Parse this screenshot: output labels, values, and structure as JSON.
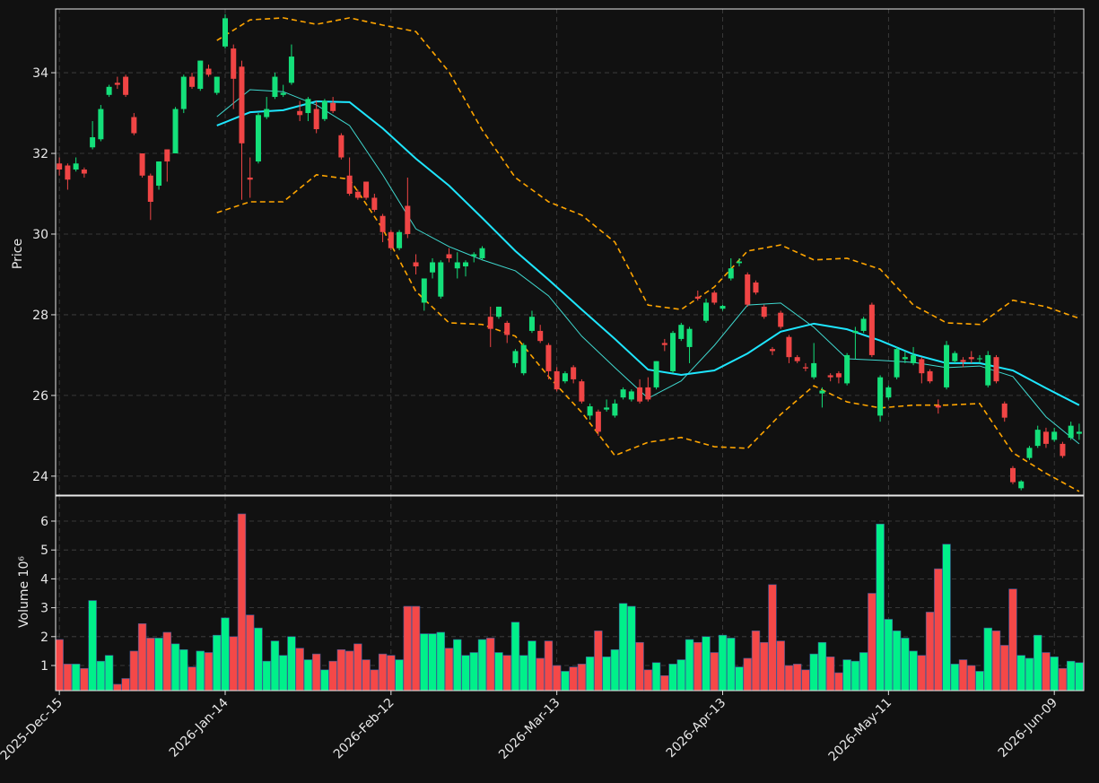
{
  "chart_data": [
    {
      "type": "candlestick",
      "ylabel": "Price",
      "xlim": [
        -0.45,
        123.55
      ],
      "ylim": [
        23.53,
        35.58
      ],
      "yticks": [
        24,
        26,
        28,
        30,
        32,
        34
      ],
      "grid": true,
      "up_color": "#14e07a",
      "down_color": "#f04545",
      "open": [
        31.75,
        31.7,
        31.6,
        31.6,
        32.15,
        32.35,
        33.45,
        33.75,
        33.9,
        32.9,
        32.0,
        31.45,
        31.2,
        32.1,
        32.0,
        33.1,
        33.9,
        33.6,
        34.1,
        33.5,
        34.65,
        34.6,
        34.15,
        31.4,
        31.8,
        32.9,
        33.4,
        33.45,
        33.75,
        33.05,
        33.0,
        33.1,
        32.85,
        33.25,
        32.45,
        31.45,
        31.05,
        31.3,
        30.9,
        30.45,
        30.05,
        29.65,
        30.7,
        29.3,
        28.3,
        29.05,
        28.45,
        29.5,
        29.15,
        29.2,
        29.45,
        29.4,
        27.95,
        27.95,
        27.8,
        26.8,
        26.55,
        27.6,
        27.6,
        27.25,
        26.6,
        26.35,
        26.7,
        26.35,
        25.5,
        25.6,
        25.65,
        25.5,
        25.95,
        25.9,
        26.2,
        26.2,
        26.2,
        27.3,
        26.6,
        27.4,
        27.2,
        28.45,
        27.85,
        28.55,
        28.15,
        28.9,
        29.28,
        29.0,
        28.8,
        28.2,
        27.15,
        28.05,
        27.45,
        26.95,
        26.7,
        26.45,
        26.05,
        26.5,
        26.55,
        26.3,
        27.55,
        27.6,
        28.25,
        25.5,
        25.95,
        26.45,
        26.9,
        26.8,
        26.9,
        26.6,
        25.75,
        26.2,
        26.85,
        26.88,
        26.95,
        26.9,
        26.25,
        26.95,
        25.8,
        24.2,
        23.7,
        24.45,
        24.75,
        25.1,
        24.9,
        24.8,
        24.95,
        25.05
      ],
      "high": [
        31.9,
        31.75,
        31.9,
        31.65,
        32.8,
        33.2,
        33.7,
        33.9,
        33.95,
        33.0,
        32.0,
        31.5,
        31.8,
        32.1,
        33.15,
        33.95,
        34.0,
        34.3,
        34.2,
        33.9,
        35.45,
        34.7,
        34.3,
        31.9,
        33.0,
        33.4,
        34.0,
        33.7,
        34.7,
        33.3,
        33.4,
        33.3,
        33.35,
        33.4,
        32.5,
        31.9,
        31.1,
        31.3,
        31.0,
        30.5,
        30.1,
        30.1,
        31.4,
        29.5,
        28.9,
        29.4,
        29.35,
        29.65,
        29.55,
        29.35,
        29.55,
        29.7,
        28.2,
        28.2,
        27.85,
        27.15,
        27.3,
        28.1,
        27.75,
        27.3,
        26.7,
        26.6,
        26.75,
        26.4,
        25.8,
        25.65,
        25.9,
        25.9,
        26.2,
        26.15,
        26.4,
        26.45,
        26.85,
        27.4,
        27.6,
        27.8,
        27.7,
        28.6,
        28.4,
        28.6,
        28.25,
        29.4,
        29.4,
        29.05,
        28.85,
        28.25,
        27.2,
        28.1,
        27.5,
        27.0,
        26.8,
        27.3,
        26.2,
        26.55,
        26.6,
        27.05,
        27.7,
        27.95,
        28.3,
        26.5,
        26.25,
        27.2,
        27.1,
        27.2,
        26.95,
        26.65,
        25.9,
        27.35,
        27.1,
        26.95,
        27.1,
        27.0,
        27.1,
        27.0,
        25.85,
        24.25,
        23.9,
        24.75,
        25.25,
        25.2,
        25.2,
        24.85,
        25.35,
        25.3
      ],
      "low": [
        31.45,
        31.1,
        31.55,
        31.4,
        32.1,
        32.3,
        33.4,
        33.6,
        33.4,
        32.45,
        31.4,
        30.35,
        31.1,
        31.3,
        32.0,
        33.0,
        33.6,
        33.55,
        33.9,
        33.45,
        34.6,
        33.1,
        30.85,
        30.9,
        31.75,
        32.85,
        33.35,
        33.4,
        33.7,
        32.8,
        32.8,
        32.5,
        32.8,
        33.0,
        31.85,
        30.95,
        30.85,
        30.85,
        30.55,
        29.8,
        29.6,
        29.6,
        29.9,
        29.0,
        28.1,
        28.9,
        28.4,
        29.3,
        28.9,
        28.95,
        29.3,
        29.35,
        27.2,
        27.9,
        27.3,
        26.7,
        26.5,
        27.55,
        27.3,
        26.4,
        26.1,
        26.3,
        26.3,
        25.8,
        25.4,
        25.0,
        25.6,
        25.45,
        25.9,
        25.85,
        25.8,
        25.85,
        26.15,
        27.1,
        26.55,
        27.35,
        26.8,
        28.35,
        27.8,
        28.25,
        28.1,
        28.85,
        29.2,
        28.2,
        28.5,
        27.9,
        27.0,
        27.65,
        26.8,
        26.8,
        26.6,
        26.4,
        25.7,
        26.35,
        26.3,
        26.25,
        26.9,
        27.55,
        26.95,
        25.35,
        25.9,
        26.4,
        26.8,
        26.75,
        26.3,
        26.3,
        25.55,
        26.15,
        26.8,
        26.7,
        26.8,
        26.8,
        26.2,
        26.3,
        25.35,
        23.8,
        23.65,
        24.4,
        24.7,
        24.7,
        24.85,
        24.45,
        24.9,
        24.9
      ],
      "close": [
        31.6,
        31.35,
        31.75,
        31.5,
        32.4,
        33.1,
        33.65,
        33.7,
        33.45,
        32.5,
        31.45,
        30.8,
        31.8,
        31.8,
        33.1,
        33.9,
        33.65,
        34.3,
        33.95,
        33.9,
        35.35,
        33.85,
        32.25,
        31.35,
        32.95,
        33.1,
        33.9,
        33.5,
        34.4,
        32.95,
        33.35,
        32.6,
        33.3,
        33.05,
        31.9,
        31.0,
        30.9,
        30.9,
        30.6,
        30.05,
        29.65,
        30.05,
        30.0,
        29.2,
        28.9,
        29.3,
        29.3,
        29.4,
        29.3,
        29.3,
        29.5,
        29.65,
        27.65,
        28.2,
        27.5,
        27.1,
        27.25,
        27.95,
        27.35,
        26.6,
        26.15,
        26.55,
        26.4,
        25.85,
        25.73,
        25.1,
        25.7,
        25.8,
        26.15,
        26.1,
        25.85,
        25.9,
        26.85,
        27.25,
        27.55,
        27.75,
        27.65,
        28.4,
        28.3,
        28.3,
        28.22,
        29.15,
        29.32,
        28.25,
        28.55,
        27.95,
        27.1,
        27.7,
        26.95,
        26.85,
        26.67,
        26.8,
        26.12,
        26.45,
        26.45,
        27.0,
        27.6,
        27.9,
        27.0,
        26.45,
        26.2,
        27.15,
        26.95,
        27.0,
        26.55,
        26.35,
        25.7,
        27.25,
        27.05,
        26.83,
        26.9,
        26.92,
        27.0,
        26.35,
        25.45,
        23.85,
        23.87,
        24.7,
        25.15,
        24.8,
        25.1,
        24.5,
        25.25,
        25.1
      ],
      "overlays": [
        {
          "color": "#ffa500",
          "dash": true,
          "width": 1.6,
          "x": [
            19,
            23,
            27,
            31,
            35,
            39,
            43,
            47,
            51,
            55,
            59,
            63,
            67,
            71,
            75,
            79,
            83,
            87,
            91,
            95,
            99,
            103,
            107,
            111,
            115,
            119,
            123
          ],
          "values": [
            34.8,
            35.31,
            35.36,
            35.2,
            35.36,
            35.18,
            35.02,
            34.02,
            32.58,
            31.4,
            30.8,
            30.47,
            29.8,
            28.24,
            28.13,
            28.69,
            29.58,
            29.73,
            29.36,
            29.4,
            29.13,
            28.24,
            27.8,
            27.76,
            28.36,
            28.2,
            27.91
          ]
        },
        {
          "color": "#ffa500",
          "dash": true,
          "width": 1.6,
          "x": [
            19,
            23,
            27,
            31,
            35,
            39,
            43,
            47,
            51,
            55,
            59,
            63,
            67,
            71,
            75,
            79,
            83,
            87,
            91,
            95,
            99,
            103,
            107,
            111,
            115,
            119,
            123
          ],
          "values": [
            30.53,
            30.8,
            30.8,
            31.47,
            31.36,
            30.13,
            28.58,
            27.8,
            27.76,
            27.47,
            26.47,
            25.58,
            24.51,
            24.84,
            24.96,
            24.73,
            24.69,
            25.53,
            26.24,
            25.84,
            25.69,
            25.76,
            25.76,
            25.8,
            24.58,
            24.07,
            23.62
          ]
        },
        {
          "color": "#3fd8cf",
          "dash": false,
          "width": 1,
          "x": [
            19,
            23,
            27,
            31,
            35,
            39,
            43,
            47,
            51,
            55,
            59,
            63,
            67,
            71,
            75,
            79,
            83,
            87,
            91,
            95,
            99,
            103,
            107,
            111,
            115,
            119,
            123
          ],
          "values": [
            32.91,
            33.58,
            33.53,
            33.2,
            32.69,
            31.47,
            30.13,
            29.69,
            29.36,
            29.09,
            28.47,
            27.47,
            26.69,
            25.93,
            26.36,
            27.24,
            28.24,
            28.29,
            27.69,
            26.91,
            26.87,
            26.82,
            26.69,
            26.73,
            26.47,
            25.47,
            24.8
          ]
        },
        {
          "color": "#1ee6ff",
          "dash": false,
          "width": 2,
          "x": [
            19,
            23,
            27,
            31,
            35,
            39,
            43,
            47,
            51,
            55,
            59,
            63,
            67,
            71,
            75,
            79,
            83,
            87,
            91,
            95,
            99,
            103,
            107,
            111,
            115,
            119,
            123
          ],
          "values": [
            32.69,
            33.02,
            33.07,
            33.29,
            33.27,
            32.62,
            31.87,
            31.2,
            30.4,
            29.58,
            28.87,
            28.13,
            27.4,
            26.64,
            26.51,
            26.62,
            27.04,
            27.58,
            27.78,
            27.64,
            27.36,
            27.02,
            26.8,
            26.8,
            26.62,
            26.18,
            25.76
          ]
        }
      ]
    },
    {
      "type": "volume",
      "ylabel": "Volume  10⁶",
      "xlim": [
        -0.45,
        123.55
      ],
      "ylim": [
        0.13,
        6.87
      ],
      "yticks": [
        1,
        2,
        3,
        4,
        5,
        6
      ],
      "grid": true,
      "up_color": "#00f08a",
      "down_color": "#f44848",
      "xticks": [
        {
          "value": 0,
          "label": "2025-Dec-15"
        },
        {
          "value": 20,
          "label": "2026-Jan-14"
        },
        {
          "value": 40,
          "label": "2026-Feb-12"
        },
        {
          "value": 60,
          "label": "2026-Mar-13"
        },
        {
          "value": 80,
          "label": "2026-Apr-13"
        },
        {
          "value": 100,
          "label": "2026-May-11"
        },
        {
          "value": 120,
          "label": "2026-Jun-09"
        }
      ],
      "values": [
        1.9,
        1.05,
        1.05,
        0.9,
        3.25,
        1.15,
        1.35,
        0.35,
        0.55,
        1.5,
        2.45,
        1.95,
        1.95,
        2.15,
        1.75,
        1.55,
        0.95,
        1.5,
        1.45,
        2.05,
        2.65,
        2.0,
        6.25,
        2.75,
        2.3,
        1.15,
        1.85,
        1.35,
        2.0,
        1.6,
        1.2,
        1.4,
        0.85,
        1.15,
        1.55,
        1.5,
        1.75,
        1.2,
        0.85,
        1.4,
        1.35,
        1.2,
        3.05,
        3.05,
        2.1,
        2.1,
        2.15,
        1.6,
        1.9,
        1.35,
        1.45,
        1.9,
        1.95,
        1.45,
        1.35,
        2.5,
        1.35,
        1.85,
        1.25,
        1.85,
        1.0,
        0.8,
        0.95,
        1.05,
        1.3,
        2.2,
        1.3,
        1.55,
        3.15,
        3.05,
        1.8,
        0.85,
        1.1,
        0.65,
        1.05,
        1.2,
        1.9,
        1.8,
        2.0,
        1.45,
        2.05,
        1.95,
        0.95,
        1.25,
        2.2,
        1.8,
        3.8,
        1.85,
        1.0,
        1.05,
        0.85,
        1.4,
        1.8,
        1.3,
        0.75,
        1.2,
        1.15,
        1.45,
        3.5,
        5.9,
        2.6,
        2.2,
        1.95,
        1.5,
        1.35,
        2.85,
        4.35,
        5.2,
        1.05,
        1.2,
        1.0,
        0.8,
        2.3,
        2.2,
        1.7,
        3.65,
        1.35,
        1.25,
        2.05,
        1.45,
        1.3,
        0.9,
        1.15,
        1.1
      ]
    }
  ]
}
